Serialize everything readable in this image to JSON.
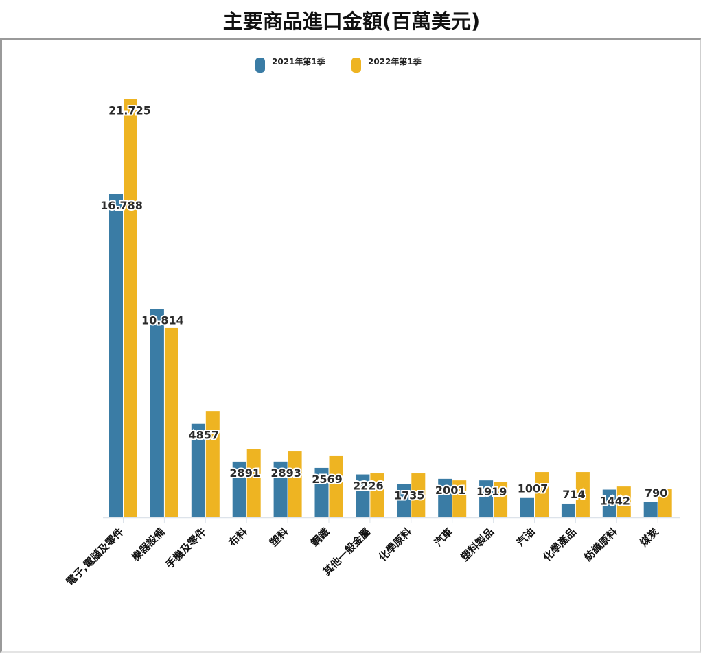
{
  "title": "主要商品進口金額(百萬美元)",
  "legend": {
    "series1": "2021年第1季",
    "series2": "2022年第1季"
  },
  "colors": {
    "series1": "#3a7ca5",
    "series2": "#eeb422",
    "axis": "#dde3ea"
  },
  "chart_data": {
    "type": "bar",
    "title": "主要商品進口金額(百萬美元)",
    "xlabel": "",
    "ylabel": "",
    "ylim": [
      0,
      22000
    ],
    "grid": false,
    "legend_position": "top",
    "categories": [
      "電子,電腦及零件",
      "機器設備",
      "手機及零件",
      "布料",
      "塑料",
      "鋼鐵",
      "其他一般金屬",
      "化學原料",
      "汽車",
      "塑料製品",
      "汽油",
      "化學產品",
      "紡織原料",
      "煤炭"
    ],
    "series": [
      {
        "name": "2021年第1季",
        "values": [
          16788,
          10814,
          4857,
          2891,
          2893,
          2569,
          2226,
          1735,
          2001,
          1919,
          1007,
          714,
          1442,
          790
        ],
        "labels": [
          "16.788",
          "10.814",
          "4857",
          "2891",
          "2893",
          "2569",
          "2226",
          "1735",
          "2001",
          "1919",
          "1007",
          "714",
          "1442",
          "790"
        ]
      },
      {
        "name": "2022年第1季",
        "values": [
          21725,
          9840,
          5520,
          3530,
          3420,
          3210,
          2280,
          2280,
          1920,
          1850,
          2350,
          2350,
          1600,
          1460
        ],
        "labels": [
          "21.725",
          "",
          "",
          "",
          "",
          "",
          "",
          "",
          "",
          "",
          "",
          "",
          "",
          ""
        ]
      }
    ]
  }
}
